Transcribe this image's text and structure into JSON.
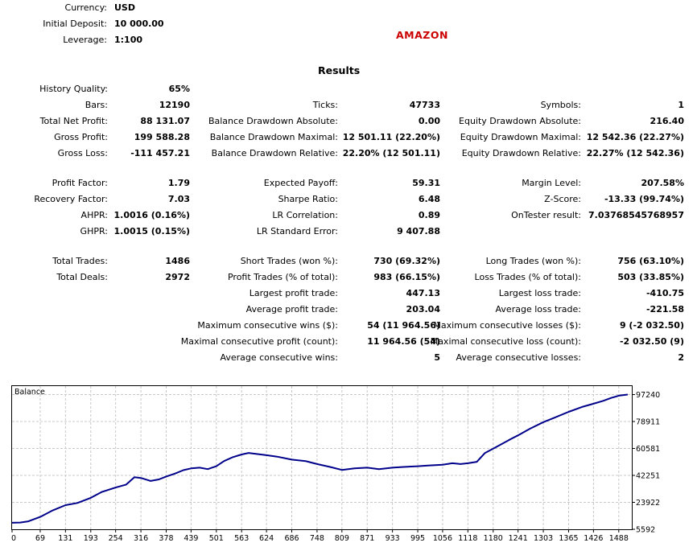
{
  "header": {
    "currency_label": "Currency:",
    "currency_value": "USD",
    "deposit_label": "Initial Deposit:",
    "deposit_value": "10 000.00",
    "leverage_label": "Leverage:",
    "leverage_value": "1:100",
    "symbol": "AMAZON"
  },
  "results_title": "Results",
  "col1": [
    {
      "label": "History Quality:",
      "value": "65%"
    },
    {
      "label": "Bars:",
      "value": "12190"
    },
    {
      "label": "Total Net Profit:",
      "value": "88 131.07"
    },
    {
      "label": "Gross Profit:",
      "value": "199 588.28"
    },
    {
      "label": "Gross Loss:",
      "value": "-111 457.21"
    },
    {
      "label": "Profit Factor:",
      "value": "1.79"
    },
    {
      "label": "Recovery Factor:",
      "value": "7.03"
    },
    {
      "label": "AHPR:",
      "value": "1.0016 (0.16%)"
    },
    {
      "label": "GHPR:",
      "value": "1.0015 (0.15%)"
    },
    {
      "label": "Total Trades:",
      "value": "1486"
    },
    {
      "label": "Total Deals:",
      "value": "2972"
    }
  ],
  "col2": [
    {
      "label": "Ticks:",
      "value": "47733"
    },
    {
      "label": "Balance Drawdown Absolute:",
      "value": "0.00"
    },
    {
      "label": "Balance Drawdown Maximal:",
      "value": "12 501.11 (22.20%)"
    },
    {
      "label": "Balance Drawdown Relative:",
      "value": "22.20% (12 501.11)"
    },
    {
      "label": "Expected Payoff:",
      "value": "59.31"
    },
    {
      "label": "Sharpe Ratio:",
      "value": "6.48"
    },
    {
      "label": "LR Correlation:",
      "value": "0.89"
    },
    {
      "label": "LR Standard Error:",
      "value": "9 407.88"
    },
    {
      "label": "Short Trades (won %):",
      "value": "730 (69.32%)"
    },
    {
      "label": "Profit Trades (% of total):",
      "value": "983 (66.15%)"
    },
    {
      "label": "Largest profit trade:",
      "value": "447.13"
    },
    {
      "label": "Average profit trade:",
      "value": "203.04"
    },
    {
      "label": "Maximum consecutive wins ($):",
      "value": "54 (11 964.56)"
    },
    {
      "label": "Maximal consecutive profit (count):",
      "value": "11 964.56 (54)"
    },
    {
      "label": "Average consecutive wins:",
      "value": "5"
    }
  ],
  "col3": [
    {
      "label": "Symbols:",
      "value": "1"
    },
    {
      "label": "Equity Drawdown Absolute:",
      "value": "216.40"
    },
    {
      "label": "Equity Drawdown Maximal:",
      "value": "12 542.36 (22.27%)"
    },
    {
      "label": "Equity Drawdown Relative:",
      "value": "22.27% (12 542.36)"
    },
    {
      "label": "Margin Level:",
      "value": "207.58%"
    },
    {
      "label": "Z-Score:",
      "value": "-13.33 (99.74%)"
    },
    {
      "label": "OnTester result:",
      "value": "7.03768545768957"
    },
    {
      "label": "Long Trades (won %):",
      "value": "756 (63.10%)"
    },
    {
      "label": "Loss Trades (% of total):",
      "value": "503 (33.85%)"
    },
    {
      "label": "Largest loss trade:",
      "value": "-410.75"
    },
    {
      "label": "Average loss trade:",
      "value": "-221.58"
    },
    {
      "label": "Maximum consecutive losses ($):",
      "value": "9 (-2 032.50)"
    },
    {
      "label": "Maximal consecutive loss (count):",
      "value": "-2 032.50 (9)"
    },
    {
      "label": "Average consecutive losses:",
      "value": "2"
    }
  ],
  "chart_data": {
    "type": "line",
    "title": "Balance",
    "x_ticks": [
      0,
      69,
      131,
      193,
      254,
      316,
      378,
      439,
      501,
      563,
      624,
      686,
      748,
      809,
      871,
      933,
      995,
      1056,
      1118,
      1180,
      1241,
      1303,
      1365,
      1426,
      1488
    ],
    "y_ticks": [
      5592,
      23922,
      42251,
      60581,
      78911,
      97240
    ],
    "xlim": [
      0,
      1520
    ],
    "ylim": [
      5592,
      103000
    ],
    "grid": true,
    "line_color": "#00008b",
    "series": [
      {
        "x": [
          0,
          20,
          40,
          69,
          100,
          131,
          160,
          193,
          220,
          254,
          280,
          300,
          316,
          340,
          360,
          378,
          400,
          420,
          439,
          460,
          480,
          501,
          520,
          540,
          563,
          580,
          600,
          624,
          650,
          686,
          720,
          748,
          780,
          809,
          840,
          871,
          900,
          933,
          960,
          995,
          1020,
          1056,
          1080,
          1100,
          1118,
          1140,
          1160,
          1180,
          1200,
          1220,
          1241,
          1270,
          1303,
          1330,
          1365,
          1400,
          1426,
          1450,
          1470,
          1488,
          1510
        ],
        "y": [
          10000,
          10200,
          11000,
          14000,
          18500,
          22000,
          23500,
          27000,
          31000,
          34000,
          36000,
          41000,
          40500,
          38500,
          39500,
          41500,
          43500,
          45800,
          47000,
          47500,
          46500,
          48500,
          52000,
          54500,
          56500,
          57500,
          56800,
          56000,
          55000,
          53000,
          52000,
          50000,
          48000,
          46000,
          47000,
          47500,
          46500,
          47500,
          48000,
          48500,
          49000,
          49500,
          50500,
          50000,
          50500,
          51500,
          57500,
          60500,
          63500,
          66500,
          69500,
          74000,
          78500,
          81500,
          85500,
          89000,
          91000,
          93000,
          95000,
          96500,
          97240
        ]
      }
    ]
  }
}
